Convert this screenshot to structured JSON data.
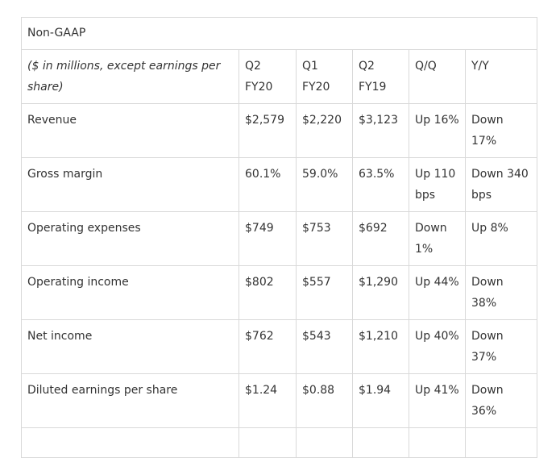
{
  "table": {
    "title": "Non-GAAP",
    "header": {
      "label": "($ in millions, except earnings per share)",
      "columns": [
        "Q2 FY20",
        "Q1 FY20",
        "Q2 FY19",
        "Q/Q",
        "Y/Y"
      ]
    },
    "rows": [
      {
        "label": "Revenue",
        "cells": [
          "$2,579",
          "$2,220",
          "$3,123",
          "Up 16%",
          "Down 17%"
        ]
      },
      {
        "label": "Gross margin",
        "cells": [
          "60.1%",
          "59.0%",
          "63.5%",
          "Up 110 bps",
          "Down 340 bps"
        ]
      },
      {
        "label": "Operating expenses",
        "cells": [
          "$749",
          "$753",
          "$692",
          "Down 1%",
          "Up 8%"
        ]
      },
      {
        "label": "Operating income",
        "cells": [
          "$802",
          "$557",
          "$1,290",
          "Up 44%",
          "Down 38%"
        ]
      },
      {
        "label": "Net income",
        "cells": [
          "$762",
          "$543",
          "$1,210",
          "Up 40%",
          "Down 37%"
        ]
      },
      {
        "label": "Diluted earnings per share",
        "cells": [
          "$1.24",
          "$0.88",
          "$1.94",
          "Up 41%",
          "Down 36%"
        ]
      }
    ]
  }
}
